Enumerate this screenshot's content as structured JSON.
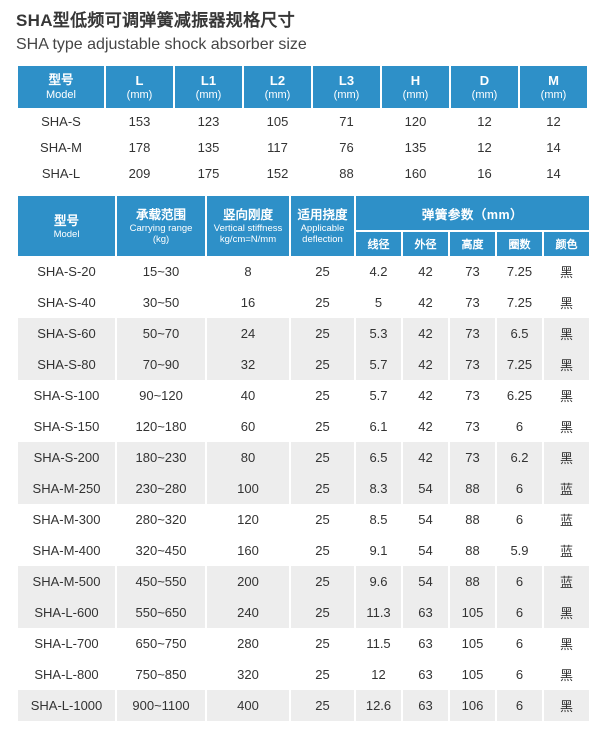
{
  "page": {
    "title_zh": "SHA型低频可调弹簧减振器规格尺寸",
    "title_en": "SHA type adjustable shock absorber size"
  },
  "colors": {
    "header_blue": "#2E90C8",
    "stripe_gray": "#EDEDED",
    "body_text": "#333333"
  },
  "size_table": {
    "headers": [
      {
        "line1": "型号",
        "line2": "Model"
      },
      {
        "line1": "L",
        "line2": "(mm)"
      },
      {
        "line1": "L1",
        "line2": "(mm)"
      },
      {
        "line1": "L2",
        "line2": "(mm)"
      },
      {
        "line1": "L3",
        "line2": "(mm)"
      },
      {
        "line1": "H",
        "line2": "(mm)"
      },
      {
        "line1": "D",
        "line2": "(mm)"
      },
      {
        "line1": "M",
        "line2": "(mm)"
      }
    ],
    "rows": [
      [
        "SHA-S",
        "153",
        "123",
        "105",
        "71",
        "120",
        "12",
        "12"
      ],
      [
        "SHA-M",
        "178",
        "135",
        "117",
        "76",
        "135",
        "12",
        "14"
      ],
      [
        "SHA-L",
        "209",
        "175",
        "152",
        "88",
        "160",
        "16",
        "14"
      ]
    ]
  },
  "spec_table": {
    "headers": {
      "model": {
        "line1": "型号",
        "line2": "Model"
      },
      "carrying": {
        "line1": "承载范围",
        "line2": "Carrying range",
        "line3": "(kg)"
      },
      "stiffness": {
        "line1": "竖向刚度",
        "line2": "Vertical stiffness",
        "line3": "kg/cm=N/mm"
      },
      "deflection": {
        "line1": "适用挠度",
        "line2": "Applicable",
        "line3": "deflection"
      },
      "spring_group": "弹簧参数（mm）",
      "spring_cols": [
        "线径",
        "外径",
        "高度",
        "圈数",
        "颜色"
      ]
    },
    "rows": [
      [
        "SHA-S-20",
        "15~30",
        "8",
        "25",
        "4.2",
        "42",
        "73",
        "7.25",
        "黑"
      ],
      [
        "SHA-S-40",
        "30~50",
        "16",
        "25",
        "5",
        "42",
        "73",
        "7.25",
        "黑"
      ],
      [
        "SHA-S-60",
        "50~70",
        "24",
        "25",
        "5.3",
        "42",
        "73",
        "6.5",
        "黑"
      ],
      [
        "SHA-S-80",
        "70~90",
        "32",
        "25",
        "5.7",
        "42",
        "73",
        "7.25",
        "黑"
      ],
      [
        "SHA-S-100",
        "90~120",
        "40",
        "25",
        "5.7",
        "42",
        "73",
        "6.25",
        "黑"
      ],
      [
        "SHA-S-150",
        "120~180",
        "60",
        "25",
        "6.1",
        "42",
        "73",
        "6",
        "黑"
      ],
      [
        "SHA-S-200",
        "180~230",
        "80",
        "25",
        "6.5",
        "42",
        "73",
        "6.2",
        "黑"
      ],
      [
        "SHA-M-250",
        "230~280",
        "100",
        "25",
        "8.3",
        "54",
        "88",
        "6",
        "蓝"
      ],
      [
        "SHA-M-300",
        "280~320",
        "120",
        "25",
        "8.5",
        "54",
        "88",
        "6",
        "蓝"
      ],
      [
        "SHA-M-400",
        "320~450",
        "160",
        "25",
        "9.1",
        "54",
        "88",
        "5.9",
        "蓝"
      ],
      [
        "SHA-M-500",
        "450~550",
        "200",
        "25",
        "9.6",
        "54",
        "88",
        "6",
        "蓝"
      ],
      [
        "SHA-L-600",
        "550~650",
        "240",
        "25",
        "11.3",
        "63",
        "105",
        "6",
        "黑"
      ],
      [
        "SHA-L-700",
        "650~750",
        "280",
        "25",
        "11.5",
        "63",
        "105",
        "6",
        "黑"
      ],
      [
        "SHA-L-800",
        "750~850",
        "320",
        "25",
        "12",
        "63",
        "105",
        "6",
        "黑"
      ],
      [
        "SHA-L-1000",
        "900~1100",
        "400",
        "25",
        "12.6",
        "63",
        "106",
        "6",
        "黑"
      ]
    ]
  }
}
